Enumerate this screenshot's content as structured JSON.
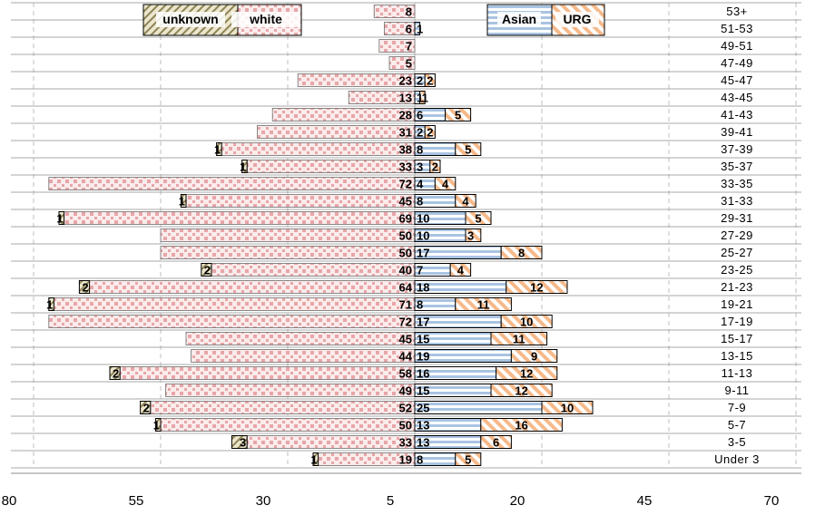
{
  "chart_data": {
    "type": "bar",
    "subtype": "diverging stacked horizontal bar (population pyramid)",
    "title": "",
    "xlabel": "",
    "ylabel": "",
    "x_axis": {
      "tick_labels": [
        "80",
        "55",
        "30",
        "5",
        "20",
        "45",
        "70"
      ],
      "range_left_side": [
        80,
        0
      ],
      "range_right_side": [
        0,
        70
      ],
      "note_center_offset": 5
    },
    "grid": true,
    "legend": {
      "left": [
        "unknown",
        "white"
      ],
      "right": [
        "Asian",
        "URG"
      ]
    },
    "colors": {
      "white": "#e8a6a8",
      "asian": "#a9c4e2",
      "urg": "#f6b98a",
      "unknown": "#b8ae86",
      "edge": "#000000",
      "grid": "#bfbfbf"
    },
    "categories": [
      "53+",
      "51-53",
      "49-51",
      "47-49",
      "45-47",
      "43-45",
      "41-43",
      "39-41",
      "37-39",
      "35-37",
      "33-35",
      "31-33",
      "29-31",
      "27-29",
      "25-27",
      "23-25",
      "21-23",
      "19-21",
      "17-19",
      "15-17",
      "13-15",
      "11-13",
      "9-11",
      "7-9",
      "5-7",
      "3-5",
      "Under 3"
    ],
    "series": [
      {
        "name": "white",
        "side": "left",
        "values": [
          8,
          6,
          7,
          5,
          23,
          13,
          28,
          31,
          38,
          33,
          72,
          45,
          69,
          50,
          50,
          40,
          64,
          71,
          72,
          45,
          44,
          58,
          49,
          52,
          50,
          33,
          19
        ]
      },
      {
        "name": "unknown",
        "side": "left",
        "values": [
          null,
          null,
          null,
          null,
          null,
          null,
          null,
          null,
          1,
          1,
          null,
          1,
          1,
          null,
          null,
          2,
          2,
          1,
          null,
          null,
          null,
          2,
          null,
          2,
          1,
          3,
          1
        ]
      },
      {
        "name": "Asian",
        "side": "right",
        "values": [
          null,
          1,
          null,
          null,
          2,
          1,
          6,
          2,
          8,
          3,
          4,
          8,
          10,
          10,
          17,
          7,
          18,
          8,
          17,
          15,
          19,
          16,
          15,
          25,
          13,
          13,
          8
        ]
      },
      {
        "name": "URG",
        "side": "right",
        "values": [
          null,
          null,
          null,
          null,
          2,
          1,
          5,
          2,
          5,
          2,
          4,
          4,
          5,
          3,
          8,
          4,
          12,
          11,
          10,
          11,
          9,
          12,
          12,
          10,
          16,
          6,
          5
        ]
      }
    ]
  }
}
